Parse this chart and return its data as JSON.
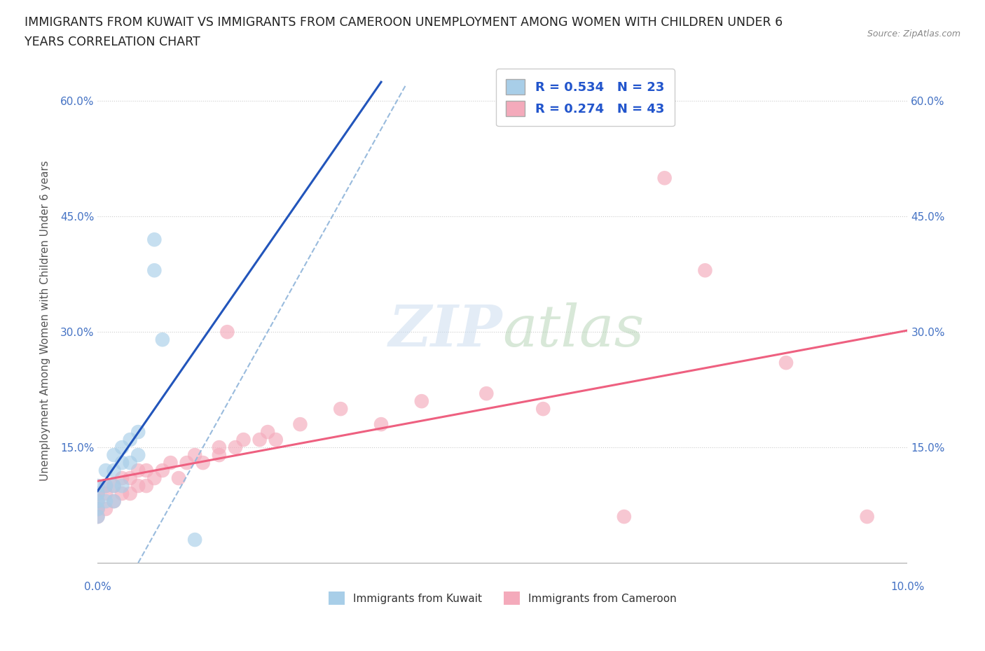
{
  "title_line1": "IMMIGRANTS FROM KUWAIT VS IMMIGRANTS FROM CAMEROON UNEMPLOYMENT AMONG WOMEN WITH CHILDREN UNDER 6",
  "title_line2": "YEARS CORRELATION CHART",
  "source": "Source: ZipAtlas.com",
  "ylabel": "Unemployment Among Women with Children Under 6 years",
  "watermark": "ZIPatlas",
  "kuwait_R": 0.534,
  "kuwait_N": 23,
  "cameroon_R": 0.274,
  "cameroon_N": 43,
  "kuwait_color": "#A8CEE8",
  "cameroon_color": "#F4AABB",
  "kuwait_line_color": "#2255BB",
  "cameroon_line_color": "#EE6080",
  "kuwait_dashed_color": "#99BBDD",
  "background_color": "#FFFFFF",
  "xlim": [
    0.0,
    0.1
  ],
  "ylim": [
    -0.02,
    0.65
  ],
  "kuwait_x": [
    0.0,
    0.0,
    0.0,
    0.0,
    0.0,
    0.001,
    0.001,
    0.001,
    0.002,
    0.002,
    0.002,
    0.002,
    0.003,
    0.003,
    0.003,
    0.004,
    0.004,
    0.005,
    0.005,
    0.007,
    0.007,
    0.008,
    0.012
  ],
  "kuwait_y": [
    0.06,
    0.07,
    0.08,
    0.09,
    0.1,
    0.08,
    0.1,
    0.12,
    0.08,
    0.1,
    0.12,
    0.14,
    0.1,
    0.13,
    0.15,
    0.13,
    0.16,
    0.14,
    0.17,
    0.38,
    0.42,
    0.29,
    0.03
  ],
  "cameroon_x": [
    0.0,
    0.0,
    0.0,
    0.0,
    0.001,
    0.001,
    0.001,
    0.002,
    0.002,
    0.003,
    0.003,
    0.004,
    0.004,
    0.005,
    0.005,
    0.006,
    0.006,
    0.007,
    0.008,
    0.009,
    0.01,
    0.011,
    0.012,
    0.013,
    0.015,
    0.015,
    0.016,
    0.017,
    0.018,
    0.02,
    0.021,
    0.022,
    0.025,
    0.03,
    0.035,
    0.04,
    0.048,
    0.055,
    0.065,
    0.07,
    0.075,
    0.085,
    0.095
  ],
  "cameroon_y": [
    0.06,
    0.07,
    0.08,
    0.09,
    0.07,
    0.09,
    0.1,
    0.08,
    0.1,
    0.09,
    0.11,
    0.09,
    0.11,
    0.1,
    0.12,
    0.1,
    0.12,
    0.11,
    0.12,
    0.13,
    0.11,
    0.13,
    0.14,
    0.13,
    0.14,
    0.15,
    0.3,
    0.15,
    0.16,
    0.16,
    0.17,
    0.16,
    0.18,
    0.2,
    0.18,
    0.21,
    0.22,
    0.2,
    0.06,
    0.5,
    0.38,
    0.26,
    0.06
  ]
}
